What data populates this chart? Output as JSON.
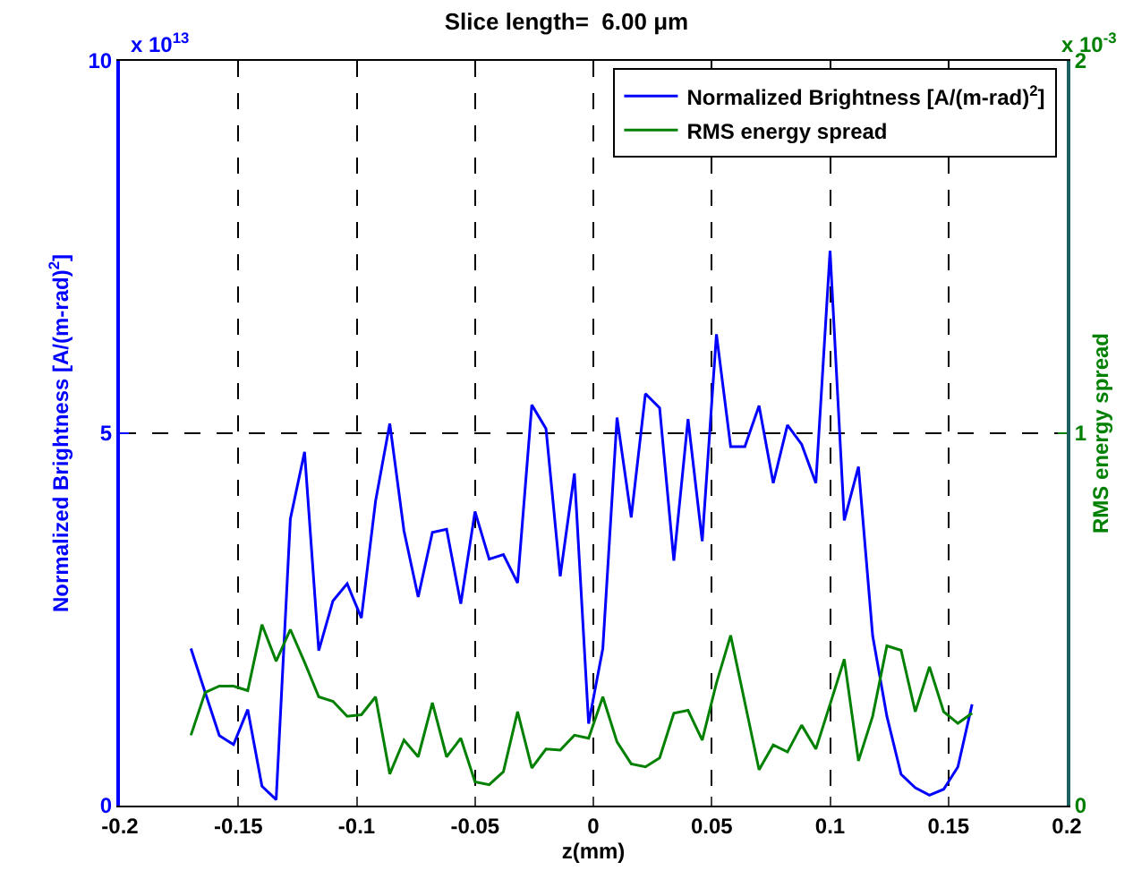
{
  "chart_data": {
    "type": "line",
    "title": "Slice length=  6.00 μm",
    "xlabel": "z(mm)",
    "ylabel": "Normalized Brightness [A/(m-rad)$^{2}$]",
    "y2label": "RMS energy spread",
    "annotations": [
      "x 10$^{13}$",
      "x 10$^{-3}$"
    ],
    "x": [
      -0.17,
      -0.164,
      -0.158,
      -0.152,
      -0.146,
      -0.14,
      -0.134,
      -0.128,
      -0.122,
      -0.116,
      -0.11,
      -0.104,
      -0.098,
      -0.092,
      -0.086,
      -0.08,
      -0.074,
      -0.068,
      -0.062,
      -0.056,
      -0.05,
      -0.044,
      -0.038,
      -0.032,
      -0.026,
      -0.02,
      -0.014,
      -0.008,
      -0.002,
      0.004,
      0.01,
      0.016,
      0.022,
      0.028,
      0.034,
      0.04,
      0.046,
      0.052,
      0.058,
      0.064,
      0.07,
      0.076,
      0.082,
      0.088,
      0.094,
      0.1,
      0.106,
      0.112,
      0.118,
      0.124,
      0.13,
      0.136,
      0.142,
      0.148,
      0.154,
      0.16
    ],
    "series": [
      {
        "name": "Normalized Brightness [A/(m-rad)$^{2}$]",
        "color": "#0000ff",
        "values": [
          2.11,
          1.52,
          0.94,
          0.82,
          1.29,
          0.26,
          0.08,
          3.85,
          4.75,
          2.08,
          2.75,
          2.98,
          2.52,
          4.09,
          5.13,
          3.69,
          2.8,
          3.67,
          3.71,
          2.71,
          3.95,
          3.31,
          3.37,
          2.99,
          5.38,
          5.06,
          3.08,
          4.46,
          1.1,
          2.11,
          5.21,
          3.87,
          5.53,
          5.34,
          3.29,
          5.19,
          3.55,
          6.33,
          4.82,
          4.82,
          5.37,
          4.33,
          5.11,
          4.85,
          4.33,
          7.45,
          3.83,
          4.55,
          2.28,
          1.2,
          0.42,
          0.24,
          0.14,
          0.22,
          0.52,
          1.36
        ]
      },
      {
        "name": "RMS energy spread",
        "color": "#008000",
        "axis": "y2",
        "values": [
          0.189,
          0.304,
          0.321,
          0.321,
          0.309,
          0.486,
          0.388,
          0.473,
          0.385,
          0.292,
          0.28,
          0.24,
          0.244,
          0.292,
          0.085,
          0.176,
          0.131,
          0.276,
          0.131,
          0.181,
          0.064,
          0.056,
          0.091,
          0.252,
          0.101,
          0.152,
          0.149,
          0.189,
          0.181,
          0.292,
          0.171,
          0.112,
          0.104,
          0.128,
          0.248,
          0.256,
          0.176,
          0.329,
          0.457,
          0.277,
          0.096,
          0.163,
          0.144,
          0.216,
          0.152,
          0.272,
          0.393,
          0.12,
          0.24,
          0.429,
          0.417,
          0.252,
          0.373,
          0.252,
          0.221,
          0.248
        ]
      }
    ],
    "xlim": [
      -0.2,
      0.2
    ],
    "xticks": [
      -0.2,
      -0.15,
      -0.1,
      -0.05,
      0,
      0.05,
      0.1,
      0.15,
      0.2
    ],
    "ylim": [
      0,
      10
    ],
    "yticks": [
      0,
      5,
      10
    ],
    "y2lim": [
      0,
      2
    ],
    "y2ticks": [
      0,
      1,
      2
    ],
    "grid": true,
    "legend": "top right",
    "line_style": "solid",
    "marker": "none"
  }
}
